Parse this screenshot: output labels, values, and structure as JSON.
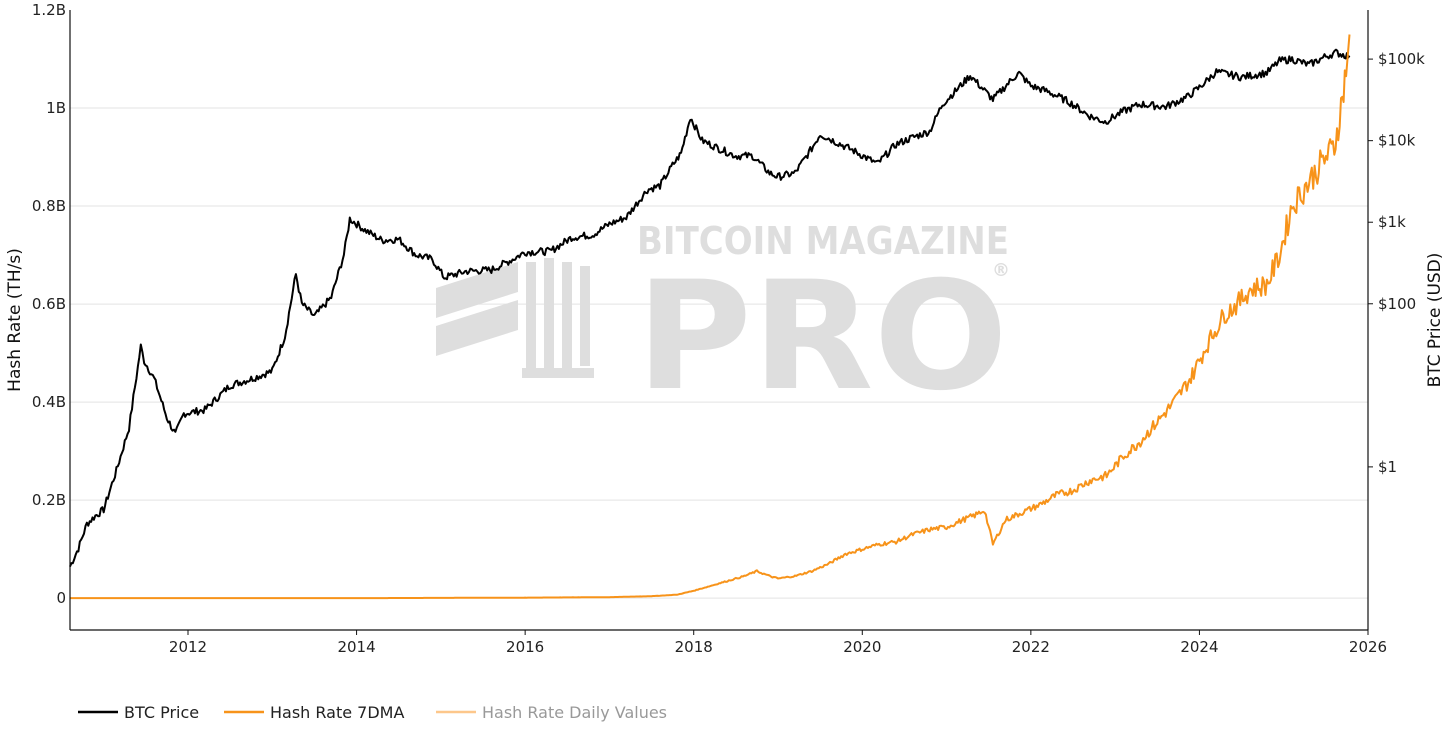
{
  "chart_data": {
    "type": "line",
    "title": "",
    "x_axis": {
      "ticks": [
        "2012",
        "2014",
        "2016",
        "2018",
        "2020",
        "2022",
        "2024",
        "2026"
      ],
      "tick_values": [
        2012,
        2014,
        2016,
        2018,
        2020,
        2022,
        2024,
        2026
      ],
      "range": [
        2010.6,
        2026.0
      ]
    },
    "y_left": {
      "label": "Hash Rate (TH/s)",
      "ticks": [
        "0",
        "0.2B",
        "0.4B",
        "0.6B",
        "0.8B",
        "1B",
        "1.2B"
      ],
      "tick_values": [
        0,
        200000000,
        400000000,
        600000000,
        800000000,
        1000000000,
        1200000000
      ],
      "range": [
        -65000000,
        1200000000
      ]
    },
    "y_right": {
      "label": "BTC Price (USD)",
      "scale": "log",
      "ticks": [
        "$1",
        "$100",
        "$1k",
        "$10k",
        "$100k"
      ],
      "tick_values": [
        1,
        100,
        1000,
        10000,
        100000
      ],
      "range": [
        0.01,
        400000
      ]
    },
    "series": [
      {
        "name": "BTC Price",
        "axis": "right",
        "color": "#000000",
        "x": [
          2010.6,
          2010.7,
          2010.8,
          2010.9,
          2011.0,
          2011.15,
          2011.3,
          2011.44,
          2011.48,
          2011.6,
          2011.75,
          2011.85,
          2011.95,
          2012.2,
          2012.5,
          2012.75,
          2013.0,
          2013.15,
          2013.28,
          2013.35,
          2013.5,
          2013.7,
          2013.85,
          2013.92,
          2014.1,
          2014.3,
          2014.5,
          2014.7,
          2014.9,
          2015.04,
          2015.3,
          2015.6,
          2015.85,
          2016.0,
          2016.3,
          2016.55,
          2016.8,
          2017.0,
          2017.2,
          2017.45,
          2017.6,
          2017.75,
          2017.85,
          2017.96,
          2018.1,
          2018.3,
          2018.5,
          2018.7,
          2018.9,
          2019.0,
          2019.2,
          2019.4,
          2019.5,
          2019.7,
          2019.9,
          2020.18,
          2020.4,
          2020.6,
          2020.8,
          2020.95,
          2021.1,
          2021.28,
          2021.55,
          2021.8,
          2021.86,
          2022.0,
          2022.2,
          2022.45,
          2022.7,
          2022.88,
          2023.1,
          2023.3,
          2023.6,
          2023.85,
          2024.0,
          2024.2,
          2024.5,
          2024.8,
          2024.95,
          2025.1,
          2025.3,
          2025.5,
          2025.62,
          2025.72,
          2025.78
        ],
        "values": [
          0.06,
          0.1,
          0.2,
          0.25,
          0.3,
          0.9,
          3.0,
          30.0,
          20.0,
          12.0,
          4.0,
          2.5,
          4.5,
          5.0,
          10.0,
          12.0,
          15.0,
          40.0,
          230.0,
          100.0,
          70.0,
          120.0,
          400.0,
          1100.0,
          800.0,
          600.0,
          620.0,
          400.0,
          350.0,
          210.0,
          250.0,
          260.0,
          350.0,
          430.0,
          440.0,
          650.0,
          700.0,
          950.0,
          1150.0,
          2500.0,
          2800.0,
          5000.0,
          7000.0,
          19500.0,
          10000.0,
          8000.0,
          6500.0,
          6500.0,
          4000.0,
          3600.0,
          4000.0,
          8000.0,
          12000.0,
          9500.0,
          7500.0,
          5200.0,
          9000.0,
          11000.0,
          13000.0,
          28000.0,
          40000.0,
          63000.0,
          32000.0,
          60000.0,
          67000.0,
          47000.0,
          40000.0,
          30000.0,
          20000.0,
          17000.0,
          23000.0,
          28000.0,
          26000.0,
          34000.0,
          45000.0,
          70000.0,
          60000.0,
          68000.0,
          95000.0,
          100000.0,
          85000.0,
          108000.0,
          120000.0,
          112000.0,
          110000.0
        ]
      },
      {
        "name": "Hash Rate 7DMA",
        "axis": "left",
        "color": "#f7931a",
        "x": [
          2010.6,
          2012.0,
          2014.0,
          2016.0,
          2017.0,
          2017.5,
          2017.8,
          2018.0,
          2018.2,
          2018.4,
          2018.6,
          2018.75,
          2018.9,
          2019.0,
          2019.2,
          2019.4,
          2019.6,
          2019.8,
          2020.0,
          2020.2,
          2020.4,
          2020.6,
          2020.8,
          2021.0,
          2021.2,
          2021.35,
          2021.45,
          2021.55,
          2021.7,
          2021.9,
          2022.1,
          2022.3,
          2022.5,
          2022.7,
          2022.9,
          2023.1,
          2023.3,
          2023.5,
          2023.7,
          2023.9,
          2024.1,
          2024.3,
          2024.45,
          2024.6,
          2024.8,
          2024.95,
          2025.1,
          2025.3,
          2025.5,
          2025.6,
          2025.68,
          2025.74,
          2025.78
        ],
        "values": [
          0,
          0,
          0,
          1000000,
          2000000,
          4000000,
          7000000,
          15000000,
          25000000,
          35000000,
          45000000,
          55000000,
          45000000,
          40000000,
          45000000,
          55000000,
          70000000,
          90000000,
          100000000,
          110000000,
          115000000,
          130000000,
          140000000,
          145000000,
          160000000,
          170000000,
          180000000,
          110000000,
          160000000,
          175000000,
          190000000,
          210000000,
          220000000,
          240000000,
          250000000,
          290000000,
          320000000,
          360000000,
          400000000,
          450000000,
          520000000,
          580000000,
          600000000,
          630000000,
          640000000,
          700000000,
          800000000,
          850000000,
          900000000,
          920000000,
          1000000000,
          1080000000,
          1150000000
        ]
      },
      {
        "name": "Hash Rate Daily Values",
        "axis": "left",
        "color": "#fdc78b",
        "visible": false
      }
    ],
    "legend": {
      "placement": "bottom-left",
      "entries": [
        "BTC Price",
        "Hash Rate 7DMA",
        "Hash Rate Daily Values"
      ],
      "colors": [
        "#000000",
        "#f7931a",
        "#fdc78b"
      ],
      "text_colors": [
        "#222222",
        "#222222",
        "#999999"
      ]
    },
    "grid": true,
    "watermark": {
      "line1": "BITCOIN MAGAZINE",
      "line2": "PRO",
      "mark": "®"
    }
  }
}
